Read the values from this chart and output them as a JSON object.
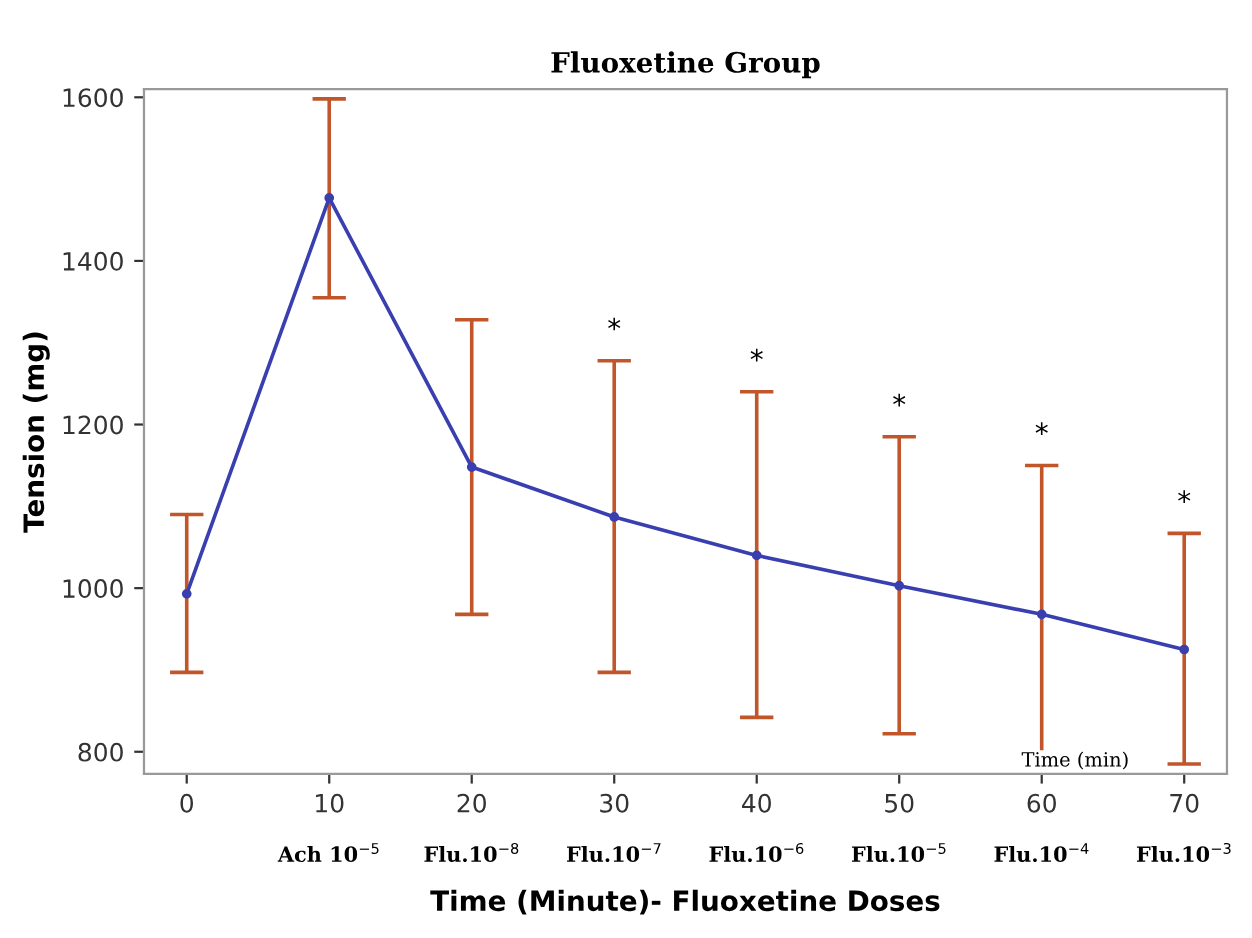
{
  "chart_data": {
    "type": "line",
    "title": "Fluoxetine Group",
    "xlabel": "Time (Minute)- Fluoxetine Doses",
    "ylabel": "Tension (mg)",
    "x": [
      0,
      10,
      20,
      30,
      40,
      50,
      60,
      70
    ],
    "series": [
      {
        "color": "#3a3fb0",
        "values": [
          993,
          1477,
          1148,
          1087,
          1040,
          1003,
          968,
          925
        ],
        "errors": [
          [
            897,
            1090
          ],
          [
            1355,
            1598
          ],
          [
            968,
            1328
          ],
          [
            897,
            1278
          ],
          [
            842,
            1240
          ],
          [
            822,
            1185
          ],
          [
            787,
            1150
          ],
          [
            785,
            1067
          ]
        ]
      }
    ],
    "xlim": [
      -3,
      73
    ],
    "xticks": [
      0,
      10,
      20,
      30,
      40,
      50,
      60,
      70
    ],
    "ylim": [
      773,
      1610
    ],
    "yticks": [
      800,
      1000,
      1200,
      1400,
      1600
    ],
    "annotations": [
      {
        "text": "*",
        "x": 30,
        "y": 1278
      },
      {
        "text": "*",
        "x": 40,
        "y": 1240
      },
      {
        "text": "*",
        "x": 50,
        "y": 1185
      },
      {
        "text": "*",
        "x": 60,
        "y": 1150
      },
      {
        "text": "*",
        "x": 70,
        "y": 1067
      },
      "Time (min)",
      "Ach 10$^{−5}$",
      "Flu.10$^{−8}$",
      "Flu.10$^{−7}$",
      "Flu.10$^{−6}$",
      "Flu.10$^{−5}$",
      "Flu.10$^{−4}$",
      "Flu.10$^{−3}$"
    ],
    "marker": "circle",
    "line_style": "solid",
    "grid": false,
    "legend": false
  }
}
